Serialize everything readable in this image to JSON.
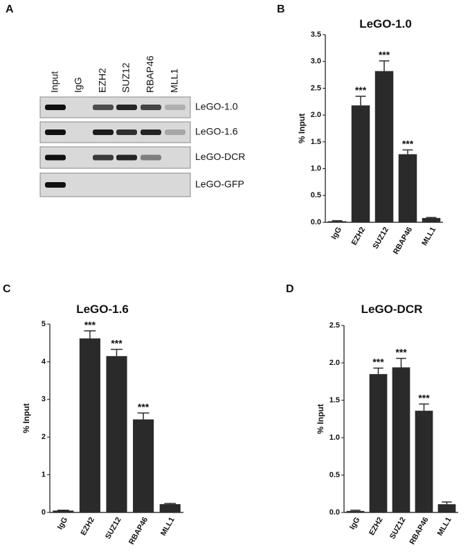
{
  "gel": {
    "panel_label": "A",
    "lanes": [
      "Input",
      "IgG",
      "EZH2",
      "SUZ12",
      "RBAP46",
      "MLL1"
    ],
    "rows": [
      "LeGO-1.0",
      "LeGO-1.6",
      "LeGO-DCR",
      "LeGO-GFP"
    ]
  },
  "chart_data": [
    {
      "type": "bar",
      "panel_label": "B",
      "title": "LeGO-1.0",
      "y_label": "% Input",
      "categories": [
        "IgG",
        "EZH2",
        "SUZ12",
        "RBAP46",
        "MLL1"
      ],
      "values": [
        0.02,
        2.18,
        2.82,
        1.27,
        0.08
      ],
      "errors": [
        0.01,
        0.17,
        0.19,
        0.08,
        0.01
      ],
      "annotations": [
        null,
        "***",
        "***",
        "***",
        null
      ],
      "color": "#2a2a2a",
      "ylim": [
        0,
        3.5
      ],
      "yticks": [
        {
          "value": 0,
          "label": "0.0"
        },
        0.5,
        {
          "value": 1,
          "label": "1.0"
        },
        1.5,
        {
          "value": 2,
          "label": "2.0"
        },
        2.5,
        {
          "value": 3,
          "label": "3.0"
        },
        3.5
      ]
    },
    {
      "type": "bar",
      "panel_label": "C",
      "title": "LeGO-1.6",
      "y_label": "% Input",
      "categories": [
        "IgG",
        "EZH2",
        "SUZ12",
        "RBAP46",
        "MLL1"
      ],
      "values": [
        0.05,
        4.62,
        4.15,
        2.47,
        0.22
      ],
      "errors": [
        0.01,
        0.2,
        0.18,
        0.17,
        0.02
      ],
      "annotations": [
        null,
        "***",
        "***",
        "***",
        null
      ],
      "color": "#2a2a2a",
      "ylim": [
        0,
        5
      ],
      "yticks": [
        0,
        1,
        2,
        3,
        4,
        5
      ]
    },
    {
      "type": "bar",
      "panel_label": "D",
      "title": "LeGO-DCR",
      "y_label": "% Input",
      "categories": [
        "IgG",
        "EZH2",
        "SUZ12",
        "RBAP46",
        "MLL1"
      ],
      "values": [
        0.02,
        1.85,
        1.94,
        1.36,
        0.11
      ],
      "errors": [
        0.01,
        0.08,
        0.12,
        0.09,
        0.03
      ],
      "annotations": [
        null,
        "***",
        "***",
        "***",
        null
      ],
      "color": "#2a2a2a",
      "ylim": [
        0,
        2.5
      ],
      "yticks": [
        {
          "value": 0,
          "label": "0.0"
        },
        0.5,
        {
          "value": 1,
          "label": "1.0"
        },
        1.5,
        {
          "value": 2,
          "label": "2.0"
        },
        2.5
      ]
    }
  ]
}
